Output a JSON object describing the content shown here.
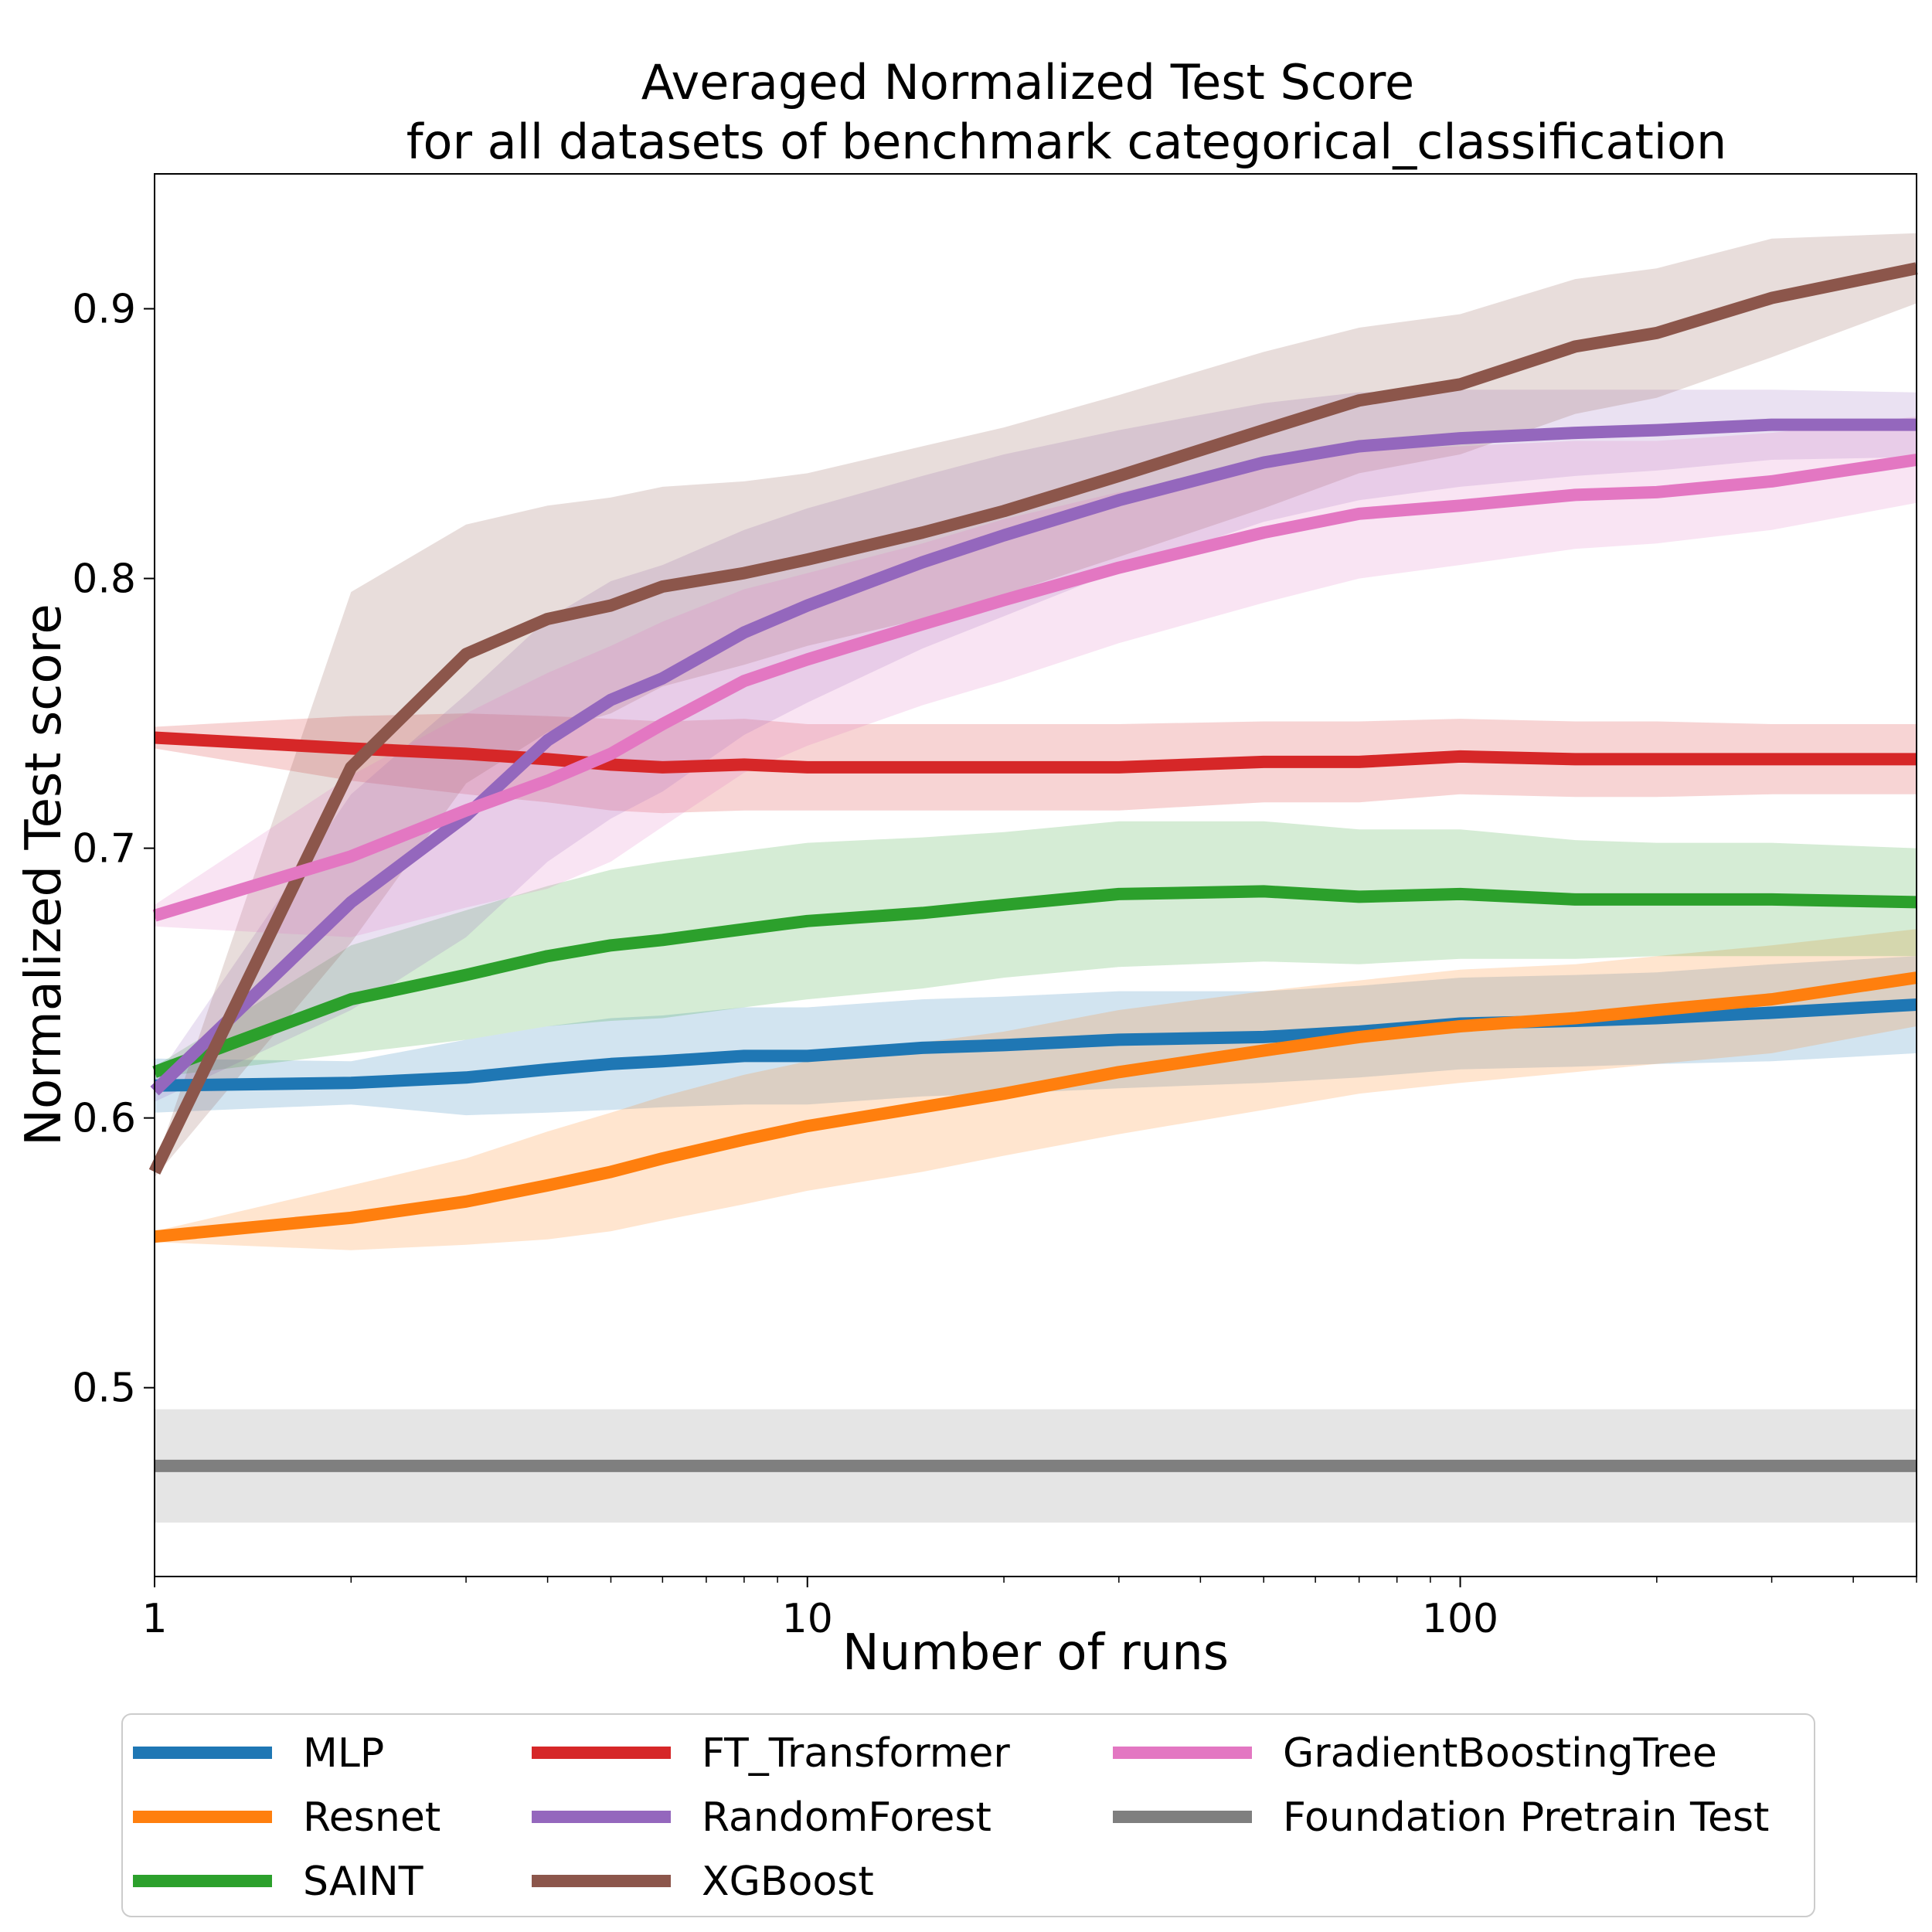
{
  "chart_data": {
    "type": "line",
    "title": "Averaged Normalized Test Score",
    "subtitle": "for all datasets of benchmark categorical_classification",
    "xlabel": "Number of runs",
    "ylabel": "Normalized Test score",
    "xscale": "log",
    "xlim": [
      1,
      500
    ],
    "ylim": [
      0.43,
      0.95
    ],
    "xticks": [
      1,
      10,
      100
    ],
    "xtick_labels": [
      "1",
      "10",
      "100"
    ],
    "yticks": [
      0.5,
      0.6,
      0.7,
      0.8,
      0.9
    ],
    "ytick_labels": [
      "0.5",
      "0.6",
      "0.7",
      "0.8",
      "0.9"
    ],
    "grid": false,
    "legend_position": "bottom, below axes, 3 columns",
    "x": [
      1,
      2,
      3,
      4,
      5,
      6,
      8,
      10,
      15,
      20,
      30,
      50,
      70,
      100,
      150,
      200,
      300,
      500
    ],
    "series": [
      {
        "name": "MLP",
        "color": "#1f77b4",
        "values": [
          0.612,
          0.613,
          0.615,
          0.618,
          0.62,
          0.621,
          0.623,
          0.623,
          0.626,
          0.627,
          0.629,
          0.63,
          0.632,
          0.635,
          0.636,
          0.637,
          0.639,
          0.642
        ],
        "band": [
          0.01,
          0.008,
          0.014,
          0.016,
          0.017,
          0.017,
          0.018,
          0.018,
          0.018,
          0.018,
          0.018,
          0.017,
          0.017,
          0.017,
          0.017,
          0.017,
          0.018,
          0.018
        ]
      },
      {
        "name": "Resnet",
        "color": "#ff7f0e",
        "values": [
          0.556,
          0.563,
          0.569,
          0.575,
          0.58,
          0.585,
          0.592,
          0.597,
          0.604,
          0.609,
          0.617,
          0.625,
          0.63,
          0.634,
          0.637,
          0.64,
          0.644,
          0.652
        ],
        "band": [
          0.002,
          0.012,
          0.016,
          0.02,
          0.022,
          0.023,
          0.024,
          0.024,
          0.024,
          0.023,
          0.023,
          0.022,
          0.021,
          0.021,
          0.02,
          0.02,
          0.02,
          0.018
        ]
      },
      {
        "name": "SAINT",
        "color": "#2ca02c",
        "values": [
          0.617,
          0.644,
          0.653,
          0.66,
          0.664,
          0.666,
          0.67,
          0.673,
          0.676,
          0.679,
          0.683,
          0.684,
          0.682,
          0.683,
          0.681,
          0.681,
          0.681,
          0.68
        ],
        "band": [
          0.002,
          0.02,
          0.024,
          0.026,
          0.028,
          0.029,
          0.029,
          0.029,
          0.028,
          0.027,
          0.027,
          0.026,
          0.025,
          0.024,
          0.022,
          0.021,
          0.021,
          0.02
        ]
      },
      {
        "name": "FT_Transformer",
        "color": "#d62728",
        "values": [
          0.741,
          0.737,
          0.735,
          0.733,
          0.731,
          0.73,
          0.731,
          0.73,
          0.73,
          0.73,
          0.73,
          0.732,
          0.732,
          0.734,
          0.733,
          0.733,
          0.733,
          0.733
        ],
        "band": [
          0.004,
          0.012,
          0.015,
          0.016,
          0.017,
          0.017,
          0.017,
          0.016,
          0.016,
          0.016,
          0.016,
          0.015,
          0.015,
          0.014,
          0.014,
          0.014,
          0.013,
          0.013
        ]
      },
      {
        "name": "RandomForest",
        "color": "#9467bd",
        "values": [
          0.61,
          0.68,
          0.712,
          0.74,
          0.755,
          0.763,
          0.78,
          0.79,
          0.806,
          0.816,
          0.829,
          0.843,
          0.849,
          0.852,
          0.854,
          0.855,
          0.857,
          0.857
        ],
        "band": [
          0.004,
          0.04,
          0.045,
          0.045,
          0.044,
          0.042,
          0.038,
          0.036,
          0.032,
          0.03,
          0.026,
          0.022,
          0.02,
          0.018,
          0.016,
          0.015,
          0.013,
          0.012
        ]
      },
      {
        "name": "XGBoost",
        "color": "#8c564b",
        "values": [
          0.58,
          0.73,
          0.772,
          0.785,
          0.79,
          0.797,
          0.802,
          0.807,
          0.817,
          0.825,
          0.838,
          0.855,
          0.866,
          0.872,
          0.886,
          0.891,
          0.904,
          0.915
        ],
        "band": [
          0.002,
          0.065,
          0.048,
          0.042,
          0.04,
          0.037,
          0.034,
          0.032,
          0.032,
          0.031,
          0.03,
          0.029,
          0.027,
          0.026,
          0.025,
          0.024,
          0.022,
          0.013
        ]
      },
      {
        "name": "GradientBoostingTree",
        "color": "#e377c2",
        "values": [
          0.675,
          0.697,
          0.714,
          0.725,
          0.735,
          0.746,
          0.762,
          0.77,
          0.783,
          0.792,
          0.804,
          0.817,
          0.824,
          0.827,
          0.831,
          0.832,
          0.836,
          0.844
        ],
        "band": [
          0.004,
          0.03,
          0.036,
          0.04,
          0.04,
          0.038,
          0.034,
          0.032,
          0.03,
          0.03,
          0.028,
          0.026,
          0.024,
          0.022,
          0.02,
          0.019,
          0.018,
          0.016
        ]
      },
      {
        "name": "Foundation Pretrain Test",
        "color": "#7f7f7f",
        "values": [
          0.471,
          0.471,
          0.471,
          0.471,
          0.471,
          0.471,
          0.471,
          0.471,
          0.471,
          0.471,
          0.471,
          0.471,
          0.471,
          0.471,
          0.471,
          0.471,
          0.471,
          0.471
        ],
        "band": [
          0.021,
          0.021,
          0.021,
          0.021,
          0.021,
          0.021,
          0.021,
          0.021,
          0.021,
          0.021,
          0.021,
          0.021,
          0.021,
          0.021,
          0.021,
          0.021,
          0.021,
          0.021
        ]
      }
    ]
  }
}
